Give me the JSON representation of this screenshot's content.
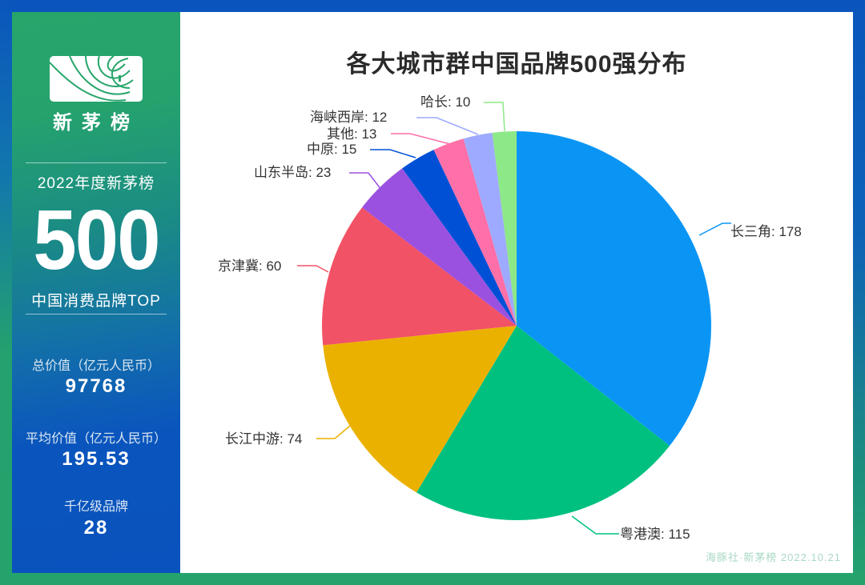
{
  "sidebar": {
    "logo_text": "新茅榜",
    "year_title": "2022年度新茅榜",
    "big_number": "500",
    "subtitle": "中国消费品牌TOP",
    "stats": [
      {
        "label": "总价值（亿元人民币）",
        "value": "97768"
      },
      {
        "label": "平均价值（亿元人民币）",
        "value": "195.53"
      },
      {
        "label": "千亿级品牌",
        "value": "28"
      }
    ]
  },
  "footer": "海豚社·新茅榜  2022.10.21",
  "chart_data": {
    "type": "pie",
    "title": "各大城市群中国品牌500强分布",
    "categories": [
      "长三角",
      "粤港澳",
      "长江中游",
      "京津冀",
      "山东半岛",
      "中原",
      "其他",
      "海峡西岸",
      "哈长"
    ],
    "values": [
      178,
      115,
      74,
      60,
      23,
      15,
      13,
      12,
      10
    ],
    "colors": [
      "#0a95f5",
      "#00c07f",
      "#ebb100",
      "#f25265",
      "#9b51e0",
      "#0050d6",
      "#ff6fa8",
      "#9eaaff",
      "#8de887"
    ],
    "labels": [
      "长三角: 178",
      "粤港澳: 115",
      "长江中游: 74",
      "京津冀: 60",
      "山东半岛: 23",
      "中原: 15",
      "其他: 13",
      "海峡西岸: 12",
      "哈长: 10"
    ],
    "total": 500,
    "start_angle": "12 o'clock, clockwise",
    "legend": "none (labels with leader lines)"
  }
}
